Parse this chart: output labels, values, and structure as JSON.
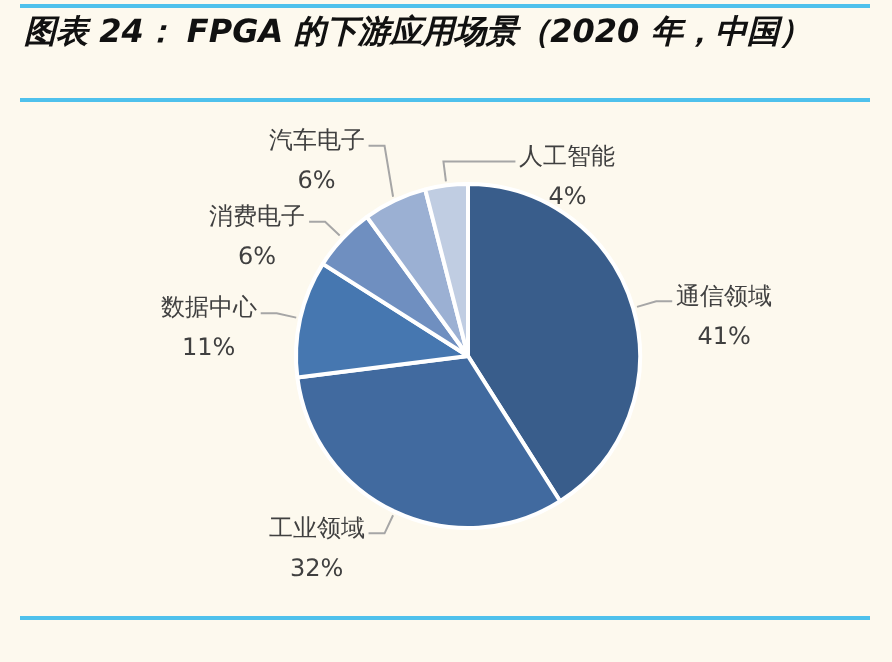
{
  "chart_data": {
    "type": "pie",
    "title": "图表 24： FPGA 的下游应用场景（2020 年，中国）",
    "categories": [
      "通信领域",
      "工业领域",
      "数据中心",
      "消费电子",
      "汽车电子",
      "人工智能"
    ],
    "values": [
      41,
      32,
      11,
      6,
      6,
      4
    ],
    "value_labels": [
      "41%",
      "32%",
      "11%",
      "6%",
      "6%",
      "4%"
    ],
    "colors": [
      "#395d8b",
      "#416a9f",
      "#4677b0",
      "#6f8fc0",
      "#9bb0d3",
      "#c0cde2"
    ],
    "legend": false
  }
}
